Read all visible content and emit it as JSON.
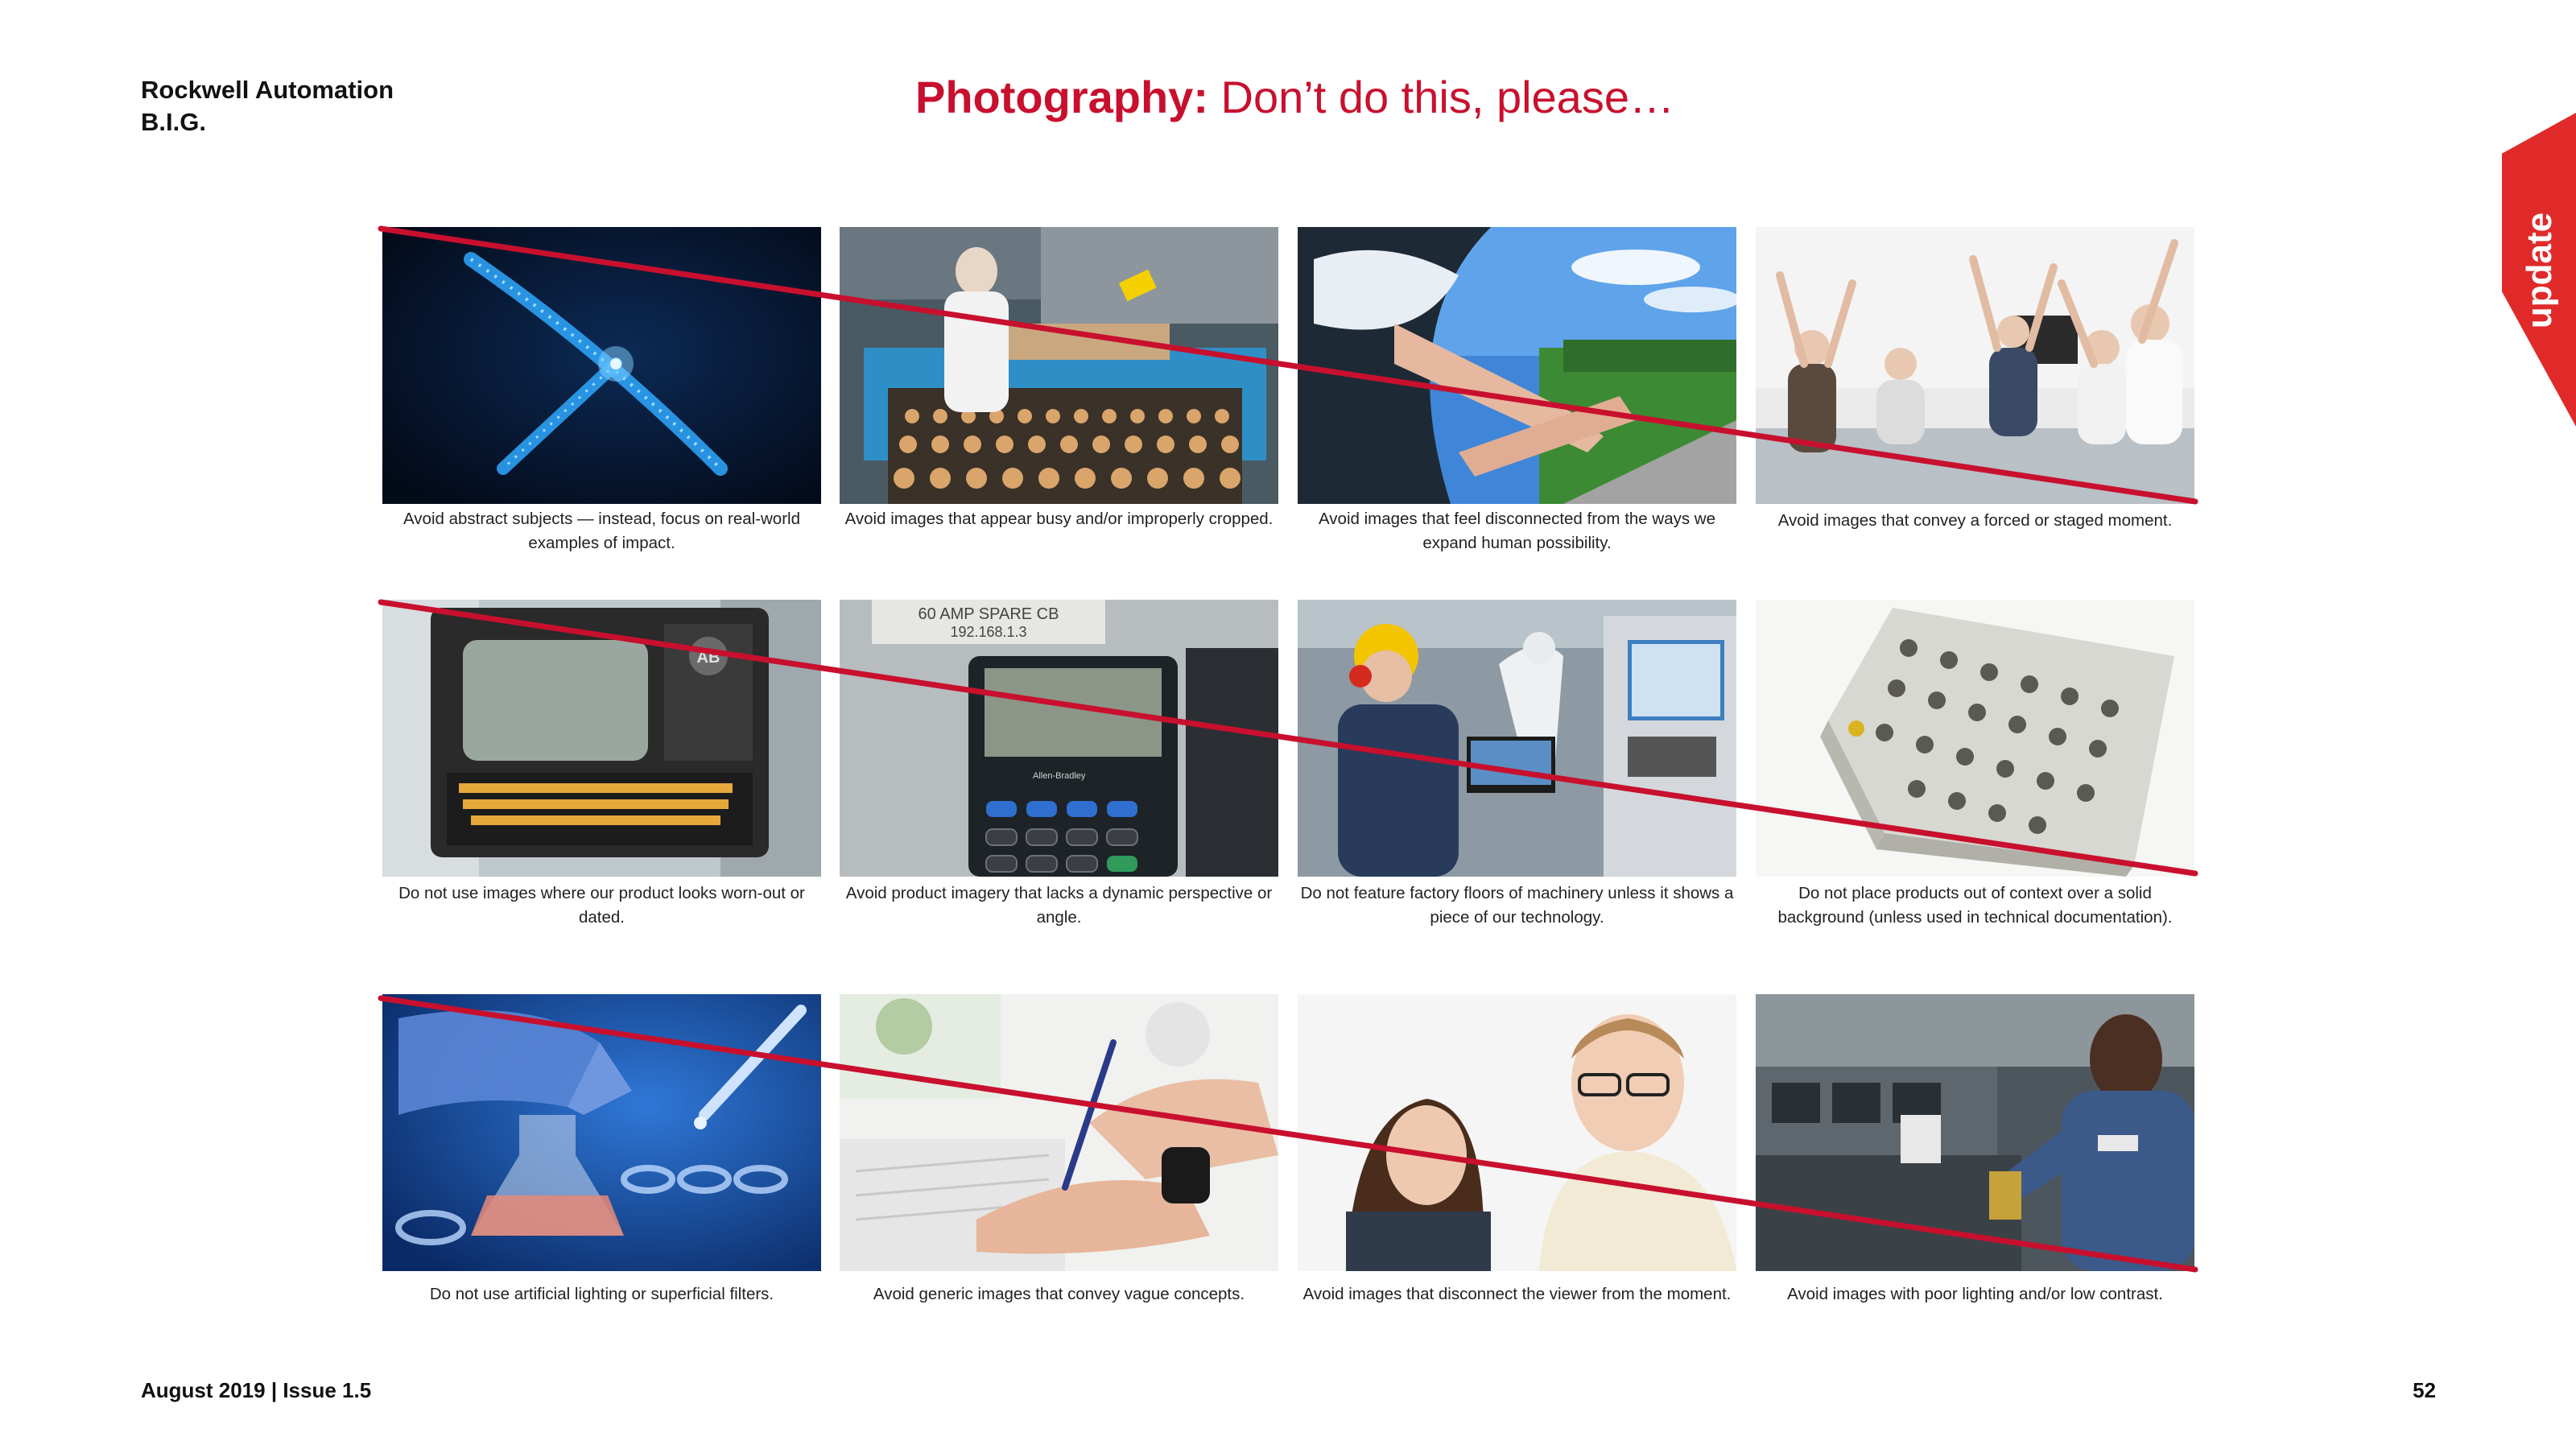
{
  "header": {
    "brand_line1": "Rockwell Automation",
    "brand_line2": "B.I.G.",
    "title_bold": "Photography:",
    "title_rest": " Don’t do this, please…"
  },
  "side_tab": {
    "label": "update",
    "color": "#e02a2a"
  },
  "accent_color": "#c8102e",
  "photos": [
    {
      "subject": "abstract glowing blue pickaxe",
      "caption": "Avoid abstract subjects — instead, focus on real-world examples of impact."
    },
    {
      "subject": "factory worker at cookie production line",
      "caption": "Avoid images that appear busy and/or improperly cropped."
    },
    {
      "subject": "feet out of car window on road",
      "caption": "Avoid images that feel disconnected from the ways we expand human possibility."
    },
    {
      "subject": "office team cheering with raised arms",
      "caption": "Avoid images that convey a forced or staged moment."
    },
    {
      "subject": "old portable terminal computer",
      "caption": "Do not use images where our product looks worn-out or dated."
    },
    {
      "subject": "keypad device with labels",
      "caption": "Avoid product imagery that lacks a dynamic perspective or angle."
    },
    {
      "subject": "engineer with laptop near robot arm",
      "caption": "Do not feature factory floors of machinery unless it shows a piece of our technology."
    },
    {
      "subject": "connector block product on white",
      "caption": "Do not place products out of context over a solid background (unless used in technical documentation)."
    },
    {
      "subject": "gloved hand with flask and pipette",
      "caption": "Do not use artificial lighting or superficial filters."
    },
    {
      "subject": "hands writing with pen",
      "caption": "Avoid generic images that convey vague concepts."
    },
    {
      "subject": "two people looking at screen",
      "caption": "Avoid images that disconnect the viewer from the moment."
    },
    {
      "subject": "technician working on equipment",
      "caption": "Avoid images with poor lighting and/or low contrast."
    }
  ],
  "labels": {
    "keypad_label_line1": "60 AMP SPARE CB",
    "keypad_label_line2": "192.168.1.3",
    "keypad_brand": "Allen-Bradley",
    "terminal_badge": "AB"
  },
  "footer": {
    "date_issue": "August 2019 | Issue 1.5",
    "page_number": "52"
  }
}
